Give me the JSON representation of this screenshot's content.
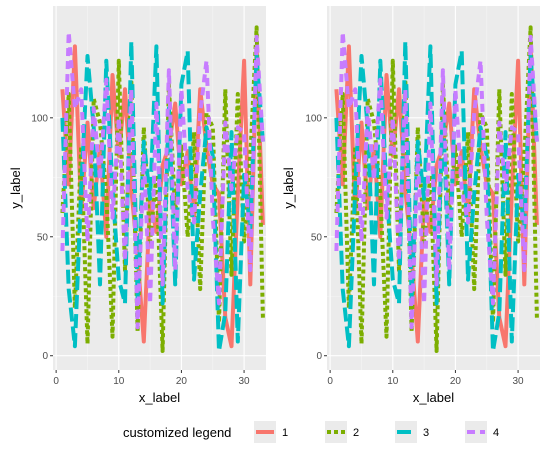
{
  "chart_data": [
    {
      "type": "line",
      "xlabel": "x_label",
      "ylabel": "y_label",
      "xlim": [
        -0.5,
        33.5
      ],
      "ylim": [
        -6,
        147
      ],
      "x_ticks": [
        0,
        10,
        20,
        30
      ],
      "y_ticks": [
        0,
        50,
        100
      ],
      "grid": true,
      "series": [
        {
          "name": "1",
          "color": "#F8766D",
          "dash": "solid",
          "x": [
            1,
            2,
            3,
            4,
            5,
            6,
            7,
            8,
            9,
            10,
            11,
            12,
            13,
            14,
            15,
            16,
            17,
            18,
            19,
            20,
            21,
            22,
            23,
            24,
            25,
            26,
            27,
            28,
            29,
            30,
            31,
            32,
            33
          ],
          "y": [
            112,
            72,
            130,
            60,
            98,
            62,
            88,
            50,
            118,
            84,
            112,
            70,
            42,
            6,
            66,
            52,
            80,
            88,
            106,
            72,
            86,
            58,
            112,
            88,
            72,
            68,
            16,
            4,
            68,
            124,
            30,
            130,
            55
          ]
        },
        {
          "name": "2",
          "color": "#7CAE00",
          "dash": "dotted",
          "x": [
            1,
            2,
            3,
            4,
            5,
            6,
            7,
            8,
            9,
            10,
            11,
            12,
            13,
            14,
            15,
            16,
            17,
            18,
            19,
            20,
            21,
            22,
            23,
            24,
            25,
            26,
            27,
            28,
            29,
            30,
            31,
            32,
            33
          ],
          "y": [
            60,
            110,
            20,
            88,
            5,
            108,
            98,
            68,
            8,
            124,
            36,
            116,
            10,
            96,
            48,
            76,
            2,
            114,
            60,
            88,
            50,
            94,
            28,
            102,
            96,
            14,
            112,
            34,
            110,
            48,
            84,
            138,
            16
          ]
        },
        {
          "name": "3",
          "color": "#00BFC4",
          "dash": "longdash",
          "x": [
            1,
            2,
            3,
            4,
            5,
            6,
            7,
            8,
            9,
            10,
            11,
            12,
            13,
            14,
            15,
            16,
            17,
            18,
            19,
            20,
            21,
            22,
            23,
            24,
            25,
            26,
            27,
            28,
            29,
            30,
            31,
            32,
            33
          ],
          "y": [
            100,
            28,
            4,
            70,
            126,
            96,
            30,
            124,
            70,
            32,
            22,
            132,
            24,
            90,
            66,
            130,
            22,
            104,
            30,
            114,
            128,
            32,
            68,
            96,
            84,
            2,
            18,
            94,
            6,
            76,
            54,
            126,
            90
          ]
        },
        {
          "name": "4",
          "color": "#C77CFF",
          "dash": "dashed",
          "x": [
            1,
            2,
            3,
            4,
            5,
            6,
            7,
            8,
            9,
            10,
            11,
            12,
            13,
            14,
            15,
            16,
            17,
            18,
            19,
            20,
            21,
            22,
            23,
            24,
            25,
            26,
            27,
            28,
            29,
            30,
            31,
            32,
            33
          ],
          "y": [
            44,
            136,
            104,
            112,
            48,
            104,
            74,
            116,
            58,
            100,
            40,
            112,
            12,
            84,
            22,
            106,
            30,
            120,
            36,
            112,
            70,
            56,
            102,
            124,
            58,
            22,
            98,
            70,
            96,
            94,
            36,
            134,
            90
          ]
        }
      ]
    },
    {
      "type": "line",
      "xlabel": "x_label",
      "ylabel": "y_label",
      "xlim": [
        -0.5,
        33.5
      ],
      "ylim": [
        -6,
        147
      ],
      "x_ticks": [
        0,
        10,
        20,
        30
      ],
      "y_ticks": [
        0,
        50,
        100
      ],
      "grid": true,
      "series": [
        {
          "name": "1",
          "color": "#F8766D",
          "dash": "solid",
          "x": [
            1,
            2,
            3,
            4,
            5,
            6,
            7,
            8,
            9,
            10,
            11,
            12,
            13,
            14,
            15,
            16,
            17,
            18,
            19,
            20,
            21,
            22,
            23,
            24,
            25,
            26,
            27,
            28,
            29,
            30,
            31,
            32,
            33
          ],
          "y": [
            112,
            72,
            130,
            60,
            98,
            62,
            88,
            50,
            118,
            84,
            112,
            70,
            42,
            6,
            66,
            52,
            80,
            88,
            106,
            72,
            86,
            58,
            112,
            88,
            72,
            68,
            16,
            4,
            68,
            124,
            30,
            130,
            55
          ]
        },
        {
          "name": "2",
          "color": "#7CAE00",
          "dash": "dotted",
          "x": [
            1,
            2,
            3,
            4,
            5,
            6,
            7,
            8,
            9,
            10,
            11,
            12,
            13,
            14,
            15,
            16,
            17,
            18,
            19,
            20,
            21,
            22,
            23,
            24,
            25,
            26,
            27,
            28,
            29,
            30,
            31,
            32,
            33
          ],
          "y": [
            60,
            110,
            20,
            88,
            5,
            108,
            98,
            68,
            8,
            124,
            36,
            116,
            10,
            96,
            48,
            76,
            2,
            114,
            60,
            88,
            50,
            94,
            28,
            102,
            96,
            14,
            112,
            34,
            110,
            48,
            84,
            138,
            16
          ]
        },
        {
          "name": "3",
          "color": "#00BFC4",
          "dash": "longdash",
          "x": [
            1,
            2,
            3,
            4,
            5,
            6,
            7,
            8,
            9,
            10,
            11,
            12,
            13,
            14,
            15,
            16,
            17,
            18,
            19,
            20,
            21,
            22,
            23,
            24,
            25,
            26,
            27,
            28,
            29,
            30,
            31,
            32,
            33
          ],
          "y": [
            100,
            28,
            4,
            70,
            126,
            96,
            30,
            124,
            70,
            32,
            22,
            132,
            24,
            90,
            66,
            130,
            22,
            104,
            30,
            114,
            128,
            32,
            68,
            96,
            84,
            2,
            18,
            94,
            6,
            76,
            54,
            126,
            90
          ]
        },
        {
          "name": "4",
          "color": "#C77CFF",
          "dash": "dashed",
          "x": [
            1,
            2,
            3,
            4,
            5,
            6,
            7,
            8,
            9,
            10,
            11,
            12,
            13,
            14,
            15,
            16,
            17,
            18,
            19,
            20,
            21,
            22,
            23,
            24,
            25,
            26,
            27,
            28,
            29,
            30,
            31,
            32,
            33
          ],
          "y": [
            44,
            136,
            104,
            112,
            48,
            104,
            74,
            116,
            58,
            100,
            40,
            112,
            12,
            84,
            22,
            106,
            30,
            120,
            36,
            112,
            70,
            56,
            102,
            124,
            58,
            22,
            98,
            70,
            96,
            94,
            36,
            134,
            90
          ]
        }
      ]
    }
  ],
  "legend": {
    "title": "customized legend",
    "position": "bottom",
    "items": [
      {
        "label": "1",
        "color": "#F8766D",
        "dash": "solid"
      },
      {
        "label": "2",
        "color": "#7CAE00",
        "dash": "dotted"
      },
      {
        "label": "3",
        "color": "#00BFC4",
        "dash": "longdash"
      },
      {
        "label": "4",
        "color": "#C77CFF",
        "dash": "dashed"
      }
    ]
  }
}
